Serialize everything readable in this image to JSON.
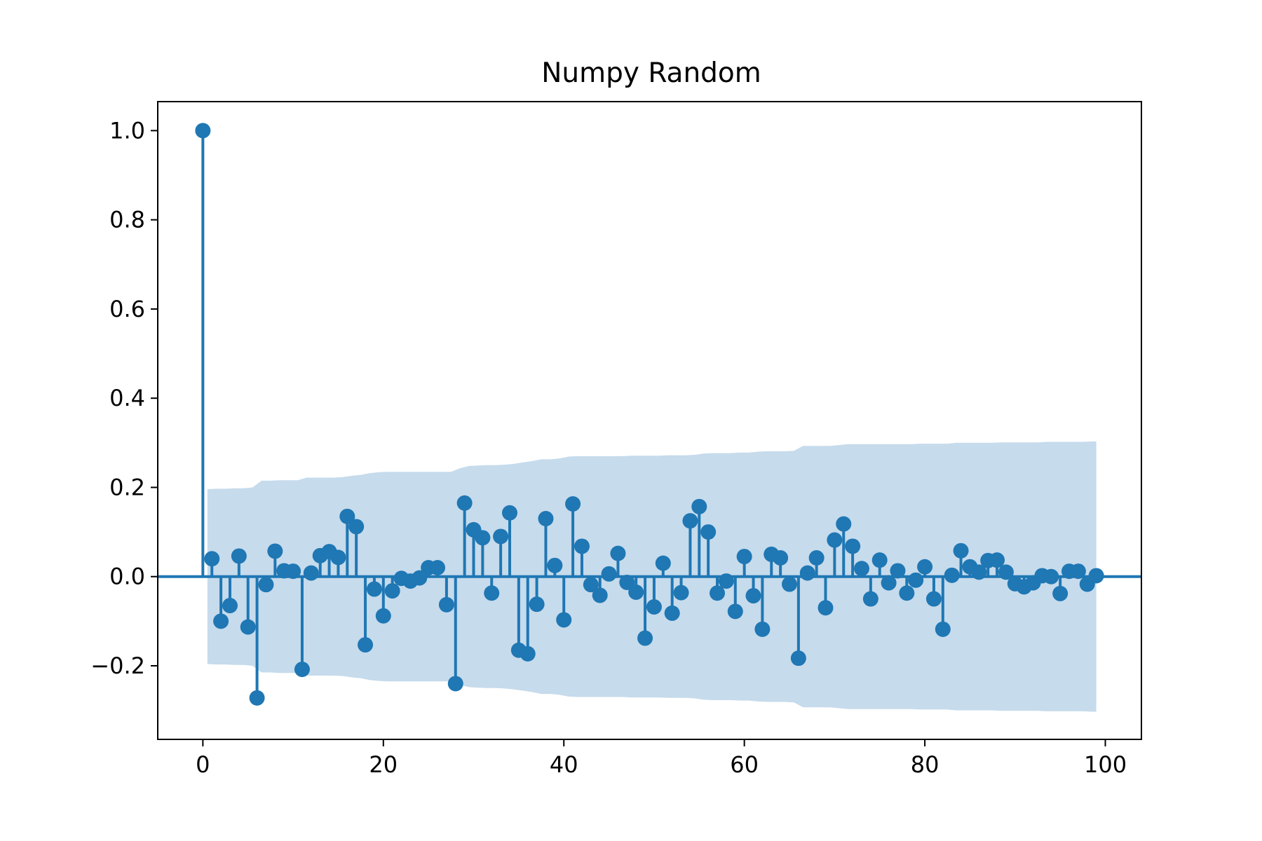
{
  "chart_data": {
    "type": "stem",
    "title": "Numpy Random",
    "xlabel": "",
    "ylabel": "",
    "xlim": [
      -5,
      104
    ],
    "ylim": [
      -0.365,
      1.065
    ],
    "grid": false,
    "legend": "none",
    "x_ticks": [
      0,
      20,
      40,
      60,
      80,
      100
    ],
    "x_tick_labels": [
      "0",
      "20",
      "40",
      "60",
      "80",
      "100"
    ],
    "y_ticks": [
      1.0,
      0.8,
      0.6,
      0.4,
      0.2,
      0.0,
      -0.2
    ],
    "y_tick_labels": [
      "1.0",
      "0.8",
      "0.6",
      "0.4",
      "0.2",
      "0.0",
      "−0.2"
    ],
    "colors": {
      "stem": "#1f77b4",
      "confidence_band": "#c6dbec"
    },
    "lags": [
      0,
      1,
      2,
      3,
      4,
      5,
      6,
      7,
      8,
      9,
      10,
      11,
      12,
      13,
      14,
      15,
      16,
      17,
      18,
      19,
      20,
      21,
      22,
      23,
      24,
      25,
      26,
      27,
      28,
      29,
      30,
      31,
      32,
      33,
      34,
      35,
      36,
      37,
      38,
      39,
      40,
      41,
      42,
      43,
      44,
      45,
      46,
      47,
      48,
      49,
      50,
      51,
      52,
      53,
      54,
      55,
      56,
      57,
      58,
      59,
      60,
      61,
      62,
      63,
      64,
      65,
      66,
      67,
      68,
      69,
      70,
      71,
      72,
      73,
      74,
      75,
      76,
      77,
      78,
      79,
      80,
      81,
      82,
      83,
      84,
      85,
      86,
      87,
      88,
      89,
      90,
      91,
      92,
      93,
      94,
      95,
      96,
      97,
      98,
      99
    ],
    "acf": [
      1.0,
      0.04,
      -0.1,
      -0.065,
      0.046,
      -0.113,
      -0.272,
      -0.018,
      0.057,
      0.013,
      0.012,
      -0.208,
      0.008,
      0.047,
      0.056,
      0.043,
      0.135,
      0.112,
      -0.153,
      -0.028,
      -0.088,
      -0.032,
      -0.004,
      -0.01,
      -0.003,
      0.02,
      0.02,
      -0.063,
      -0.24,
      0.165,
      0.105,
      0.087,
      -0.037,
      0.09,
      0.143,
      -0.165,
      -0.173,
      -0.062,
      0.13,
      0.025,
      -0.097,
      0.163,
      0.068,
      -0.018,
      -0.042,
      0.006,
      0.052,
      -0.013,
      -0.035,
      -0.138,
      -0.068,
      0.03,
      -0.082,
      -0.036,
      0.125,
      0.157,
      0.1,
      -0.037,
      -0.01,
      -0.078,
      0.045,
      -0.043,
      -0.118,
      0.05,
      0.042,
      -0.017,
      -0.183,
      0.008,
      0.042,
      -0.07,
      0.082,
      0.118,
      0.068,
      0.018,
      -0.05,
      0.037,
      -0.014,
      0.013,
      -0.037,
      -0.008,
      0.022,
      -0.05,
      -0.118,
      0.003,
      0.058,
      0.022,
      0.01,
      0.036,
      0.037,
      0.01,
      -0.016,
      -0.023,
      -0.014,
      0.002,
      0.0,
      -0.038,
      0.012,
      0.012,
      -0.017,
      0.002
    ],
    "confidence_upper": [
      0.196,
      0.196,
      0.197,
      0.197,
      0.198,
      0.198,
      0.2,
      0.215,
      0.215,
      0.216,
      0.216,
      0.216,
      0.222,
      0.222,
      0.222,
      0.222,
      0.223,
      0.226,
      0.228,
      0.232,
      0.234,
      0.235,
      0.235,
      0.235,
      0.235,
      0.235,
      0.235,
      0.235,
      0.235,
      0.243,
      0.248,
      0.249,
      0.25,
      0.25,
      0.251,
      0.253,
      0.256,
      0.259,
      0.263,
      0.263,
      0.265,
      0.269,
      0.27,
      0.27,
      0.27,
      0.27,
      0.27,
      0.27,
      0.271,
      0.271,
      0.271,
      0.271,
      0.272,
      0.272,
      0.272,
      0.273,
      0.276,
      0.277,
      0.277,
      0.277,
      0.278,
      0.278,
      0.28,
      0.281,
      0.281,
      0.281,
      0.282,
      0.293,
      0.293,
      0.293,
      0.293,
      0.295,
      0.297,
      0.297,
      0.297,
      0.297,
      0.297,
      0.297,
      0.297,
      0.297,
      0.298,
      0.298,
      0.298,
      0.298,
      0.3,
      0.3,
      0.3,
      0.3,
      0.3,
      0.301,
      0.301,
      0.301,
      0.301,
      0.301,
      0.302,
      0.302,
      0.302,
      0.302,
      0.302,
      0.303
    ]
  }
}
